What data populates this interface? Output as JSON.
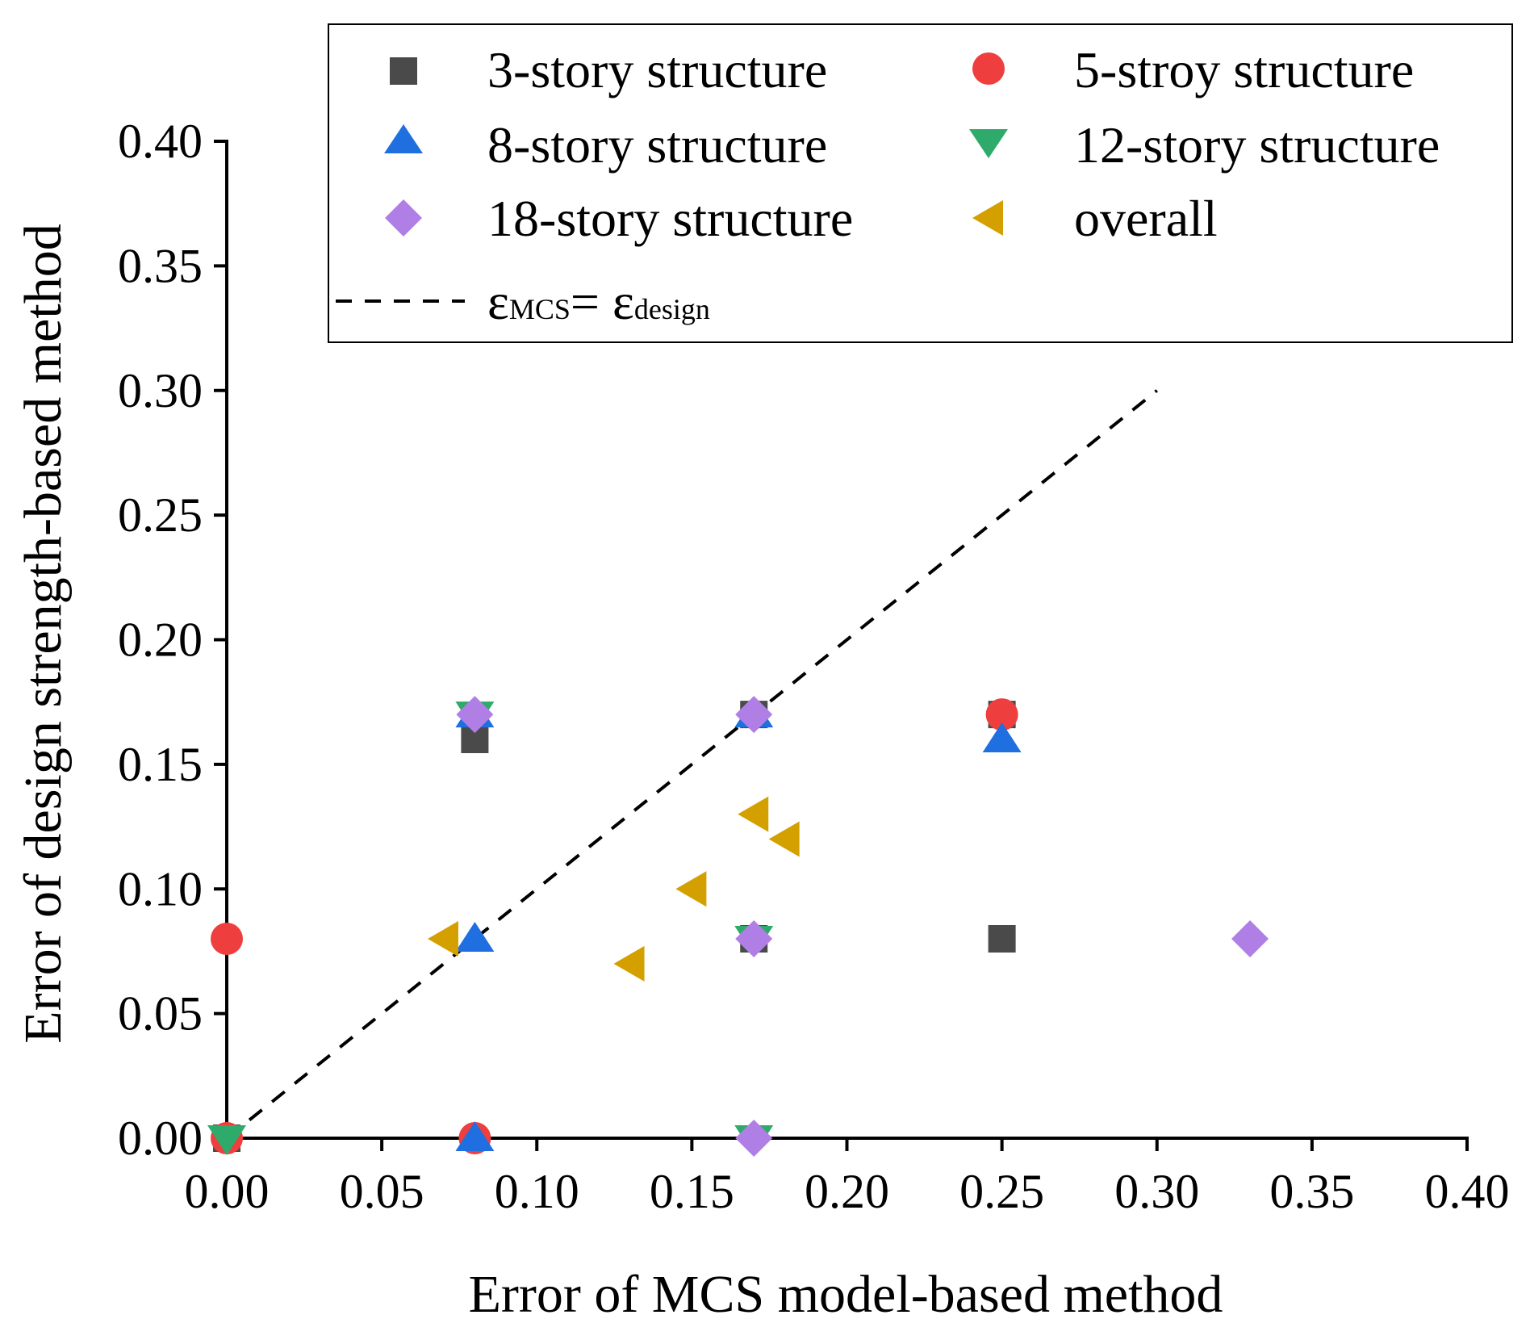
{
  "chart_data": {
    "type": "scatter",
    "xlabel": "Error of MCS model-based method",
    "ylabel": "Error of design strength-based method",
    "xlim": [
      0,
      0.4
    ],
    "ylim": [
      0,
      0.4
    ],
    "x_ticks": [
      "0.00",
      "0.05",
      "0.10",
      "0.15",
      "0.20",
      "0.25",
      "0.30",
      "0.35",
      "0.40"
    ],
    "y_ticks": [
      "0.00",
      "0.05",
      "0.10",
      "0.15",
      "0.20",
      "0.25",
      "0.30",
      "0.35",
      "0.40"
    ],
    "grid": false,
    "legend_position": "top",
    "series": [
      {
        "name": "3-story structure",
        "marker": "square",
        "color": "#4a4a4a",
        "points": [
          [
            0.0,
            0.0
          ],
          [
            0.08,
            0.16
          ],
          [
            0.17,
            0.17
          ],
          [
            0.17,
            0.08
          ],
          [
            0.25,
            0.17
          ],
          [
            0.25,
            0.08
          ]
        ]
      },
      {
        "name": "5-stroy structure",
        "marker": "circle",
        "color": "#ef3e3e",
        "points": [
          [
            0.0,
            0.08
          ],
          [
            0.0,
            0.0
          ],
          [
            0.08,
            0.0
          ],
          [
            0.25,
            0.17
          ]
        ]
      },
      {
        "name": "8-story structure",
        "marker": "triangle-up",
        "color": "#1f6fe0",
        "points": [
          [
            0.08,
            0.17
          ],
          [
            0.08,
            0.08
          ],
          [
            0.08,
            0.0
          ],
          [
            0.17,
            0.17
          ],
          [
            0.25,
            0.16
          ]
        ]
      },
      {
        "name": "12-story structure",
        "marker": "triangle-down",
        "color": "#2eaa6a",
        "points": [
          [
            0.0,
            0.0
          ],
          [
            0.08,
            0.17
          ],
          [
            0.17,
            0.08
          ],
          [
            0.17,
            0.0
          ]
        ]
      },
      {
        "name": "18-story structure",
        "marker": "diamond",
        "color": "#b07fe6",
        "points": [
          [
            0.08,
            0.17
          ],
          [
            0.17,
            0.17
          ],
          [
            0.17,
            0.08
          ],
          [
            0.17,
            0.0
          ],
          [
            0.33,
            0.08
          ]
        ]
      },
      {
        "name": "overall",
        "marker": "triangle-left",
        "color": "#d4a000",
        "points": [
          [
            0.07,
            0.08
          ],
          [
            0.13,
            0.07
          ],
          [
            0.15,
            0.1
          ],
          [
            0.17,
            0.13
          ],
          [
            0.18,
            0.12
          ]
        ]
      }
    ],
    "reference_line": {
      "label_prefix": "ε",
      "label_sub1": "MCS",
      "label_eq": "= ε",
      "label_sub2": "design",
      "points": [
        [
          0.0,
          0.0
        ],
        [
          0.3,
          0.3
        ]
      ]
    }
  }
}
